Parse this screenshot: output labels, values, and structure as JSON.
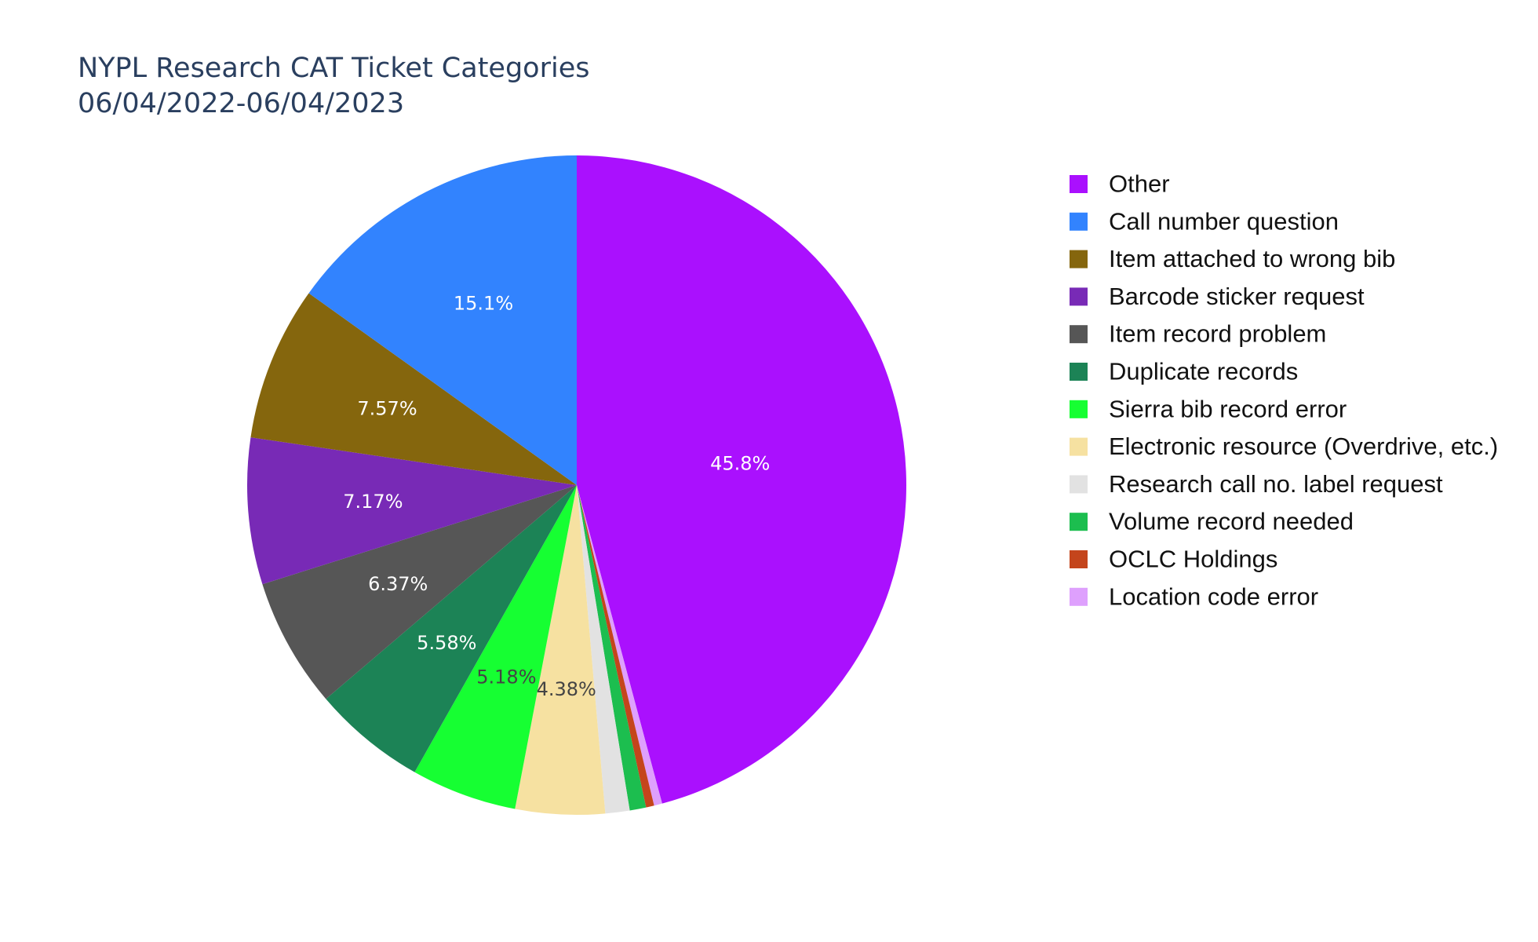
{
  "chart_data": {
    "type": "pie",
    "title": "NYPL Research CAT Ticket Categories",
    "subtitle": "06/04/2022-06/04/2023",
    "legend_position": "right",
    "direction": "clockwise",
    "start_angle": "12 o'clock",
    "slices": [
      {
        "label": "Other",
        "percent": 45.8,
        "percent_label": "45.8%",
        "color": "#AA10FE",
        "label_color": "#ffffff"
      },
      {
        "label": "Location code error",
        "percent": 0.4,
        "percent_label": "",
        "color": "#DEA0FD",
        "label_color": "#444444"
      },
      {
        "label": "OCLC Holdings",
        "percent": 0.4,
        "percent_label": "",
        "color": "#C4451C",
        "label_color": "#ffffff"
      },
      {
        "label": "Volume record needed",
        "percent": 0.8,
        "percent_label": "",
        "color": "#1CBE4F",
        "label_color": "#ffffff"
      },
      {
        "label": "Research call no. label request",
        "percent": 1.19,
        "percent_label": "",
        "color": "#E2E2E2",
        "label_color": "#444444"
      },
      {
        "label": "Electronic resource (Overdrive, etc.)",
        "percent": 4.38,
        "percent_label": "4.38%",
        "color": "#F6E1A1",
        "label_color": "#444444"
      },
      {
        "label": "Sierra bib record error",
        "percent": 5.18,
        "percent_label": "5.18%",
        "color": "#16FF32",
        "label_color": "#444444"
      },
      {
        "label": "Duplicate records",
        "percent": 5.58,
        "percent_label": "5.58%",
        "color": "#1C8356",
        "label_color": "#ffffff"
      },
      {
        "label": "Item record problem",
        "percent": 6.37,
        "percent_label": "6.37%",
        "color": "#565656",
        "label_color": "#ffffff"
      },
      {
        "label": "Barcode sticker request",
        "percent": 7.17,
        "percent_label": "7.17%",
        "color": "#782AB6",
        "label_color": "#ffffff"
      },
      {
        "label": "Item attached to wrong bib",
        "percent": 7.57,
        "percent_label": "7.57%",
        "color": "#85660D",
        "label_color": "#ffffff"
      },
      {
        "label": "Call number question",
        "percent": 15.1,
        "percent_label": "15.1%",
        "color": "#3283FE",
        "label_color": "#ffffff"
      }
    ],
    "legend": [
      {
        "label": "Other",
        "color": "#AA10FE"
      },
      {
        "label": "Call number question",
        "color": "#3283FE"
      },
      {
        "label": "Item attached to wrong bib",
        "color": "#85660D"
      },
      {
        "label": "Barcode sticker request",
        "color": "#782AB6"
      },
      {
        "label": "Item record problem",
        "color": "#565656"
      },
      {
        "label": "Duplicate records",
        "color": "#1C8356"
      },
      {
        "label": "Sierra bib record error",
        "color": "#16FF32"
      },
      {
        "label": "Electronic resource (Overdrive, etc.)",
        "color": "#F6E1A1"
      },
      {
        "label": "Research call no. label request",
        "color": "#E2E2E2"
      },
      {
        "label": "Volume record needed",
        "color": "#1CBE4F"
      },
      {
        "label": "OCLC Holdings",
        "color": "#C4451C"
      },
      {
        "label": "Location code error",
        "color": "#DEA0FD"
      }
    ]
  }
}
